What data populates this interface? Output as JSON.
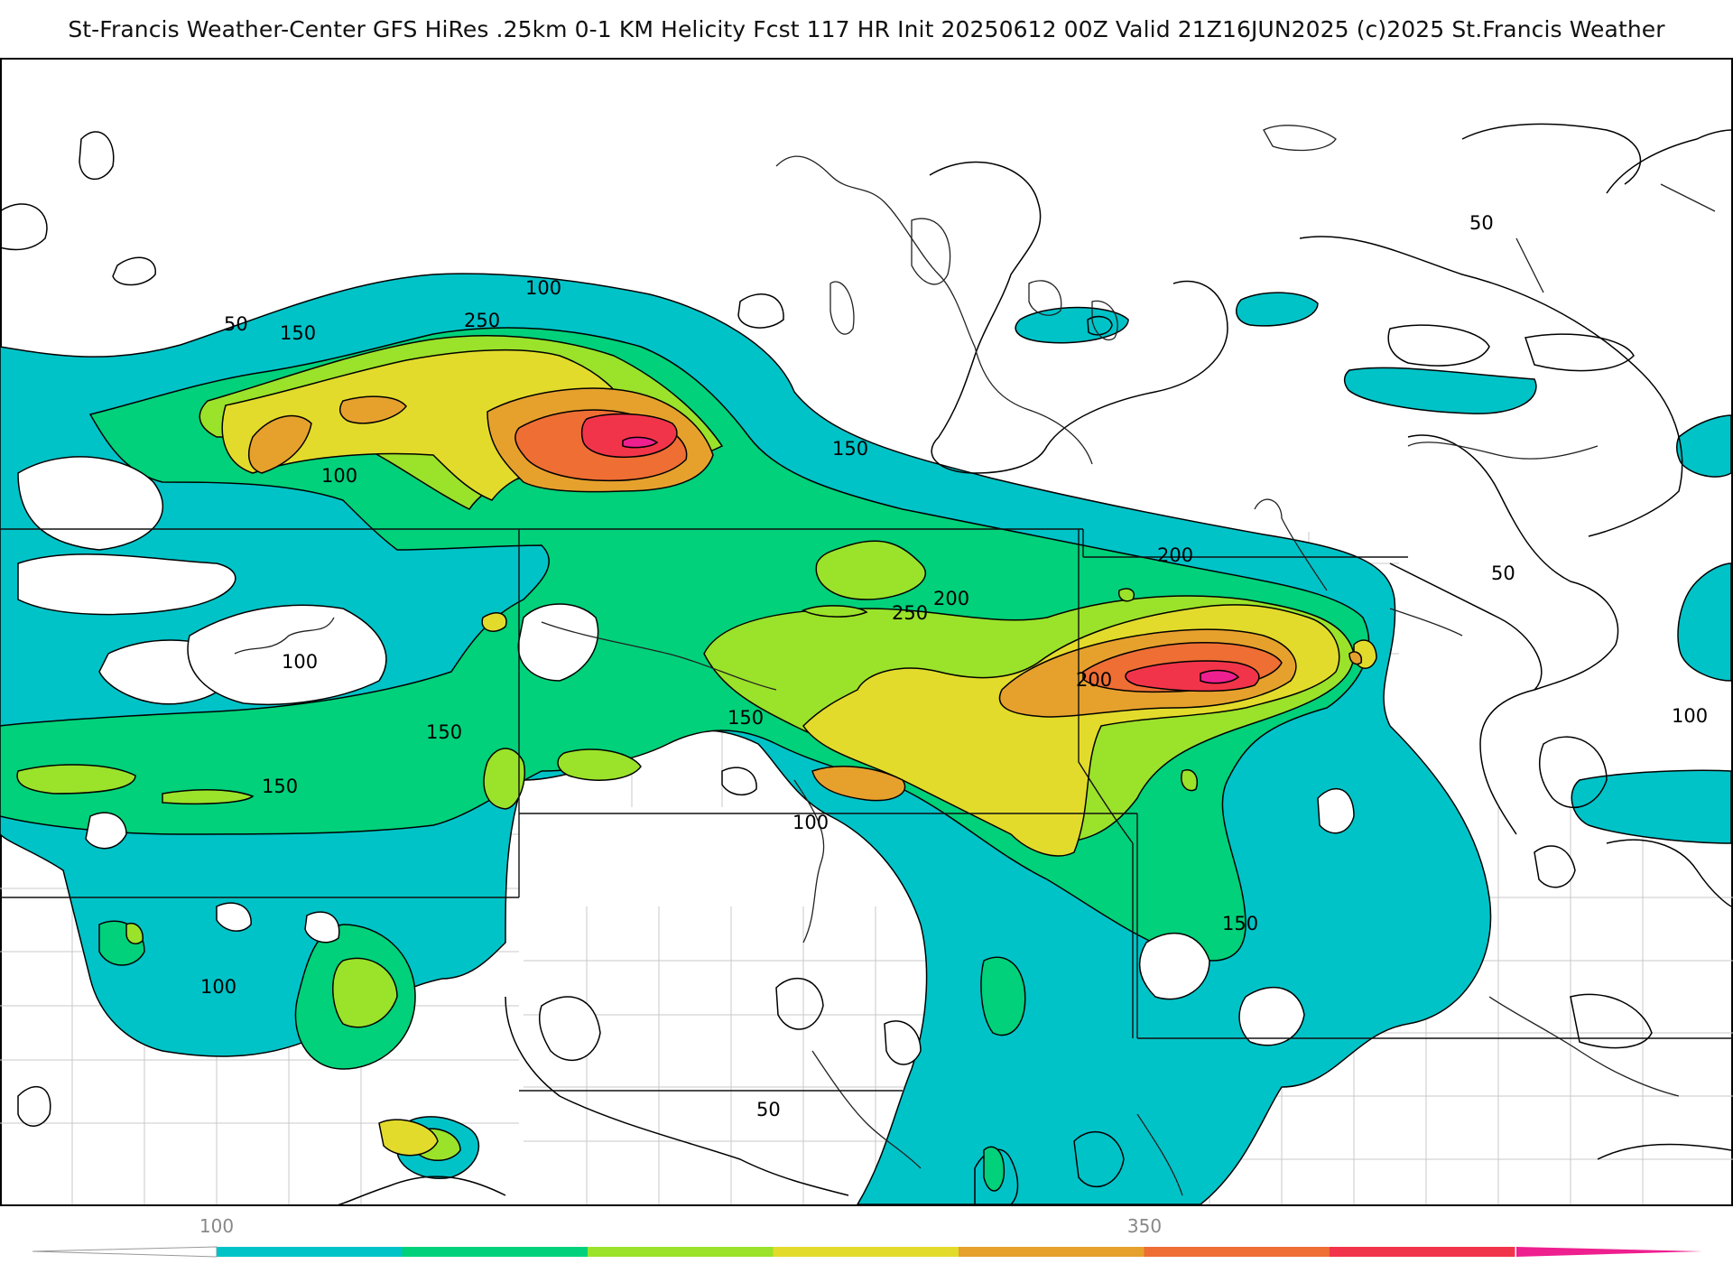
{
  "header": {
    "title": "St-Francis Weather-Center GFS HiRes .25km 0-1 KM Helicity Fcst 117 HR Init 20250612 00Z  Valid 21Z16JUN2025    (c)2025 St.Francis Weather"
  },
  "map": {
    "contour_labels": [
      "100",
      "50",
      "150",
      "250",
      "150",
      "100",
      "200",
      "200",
      "250",
      "200",
      "150",
      "100",
      "150",
      "50",
      "100",
      "150",
      "100",
      "50",
      "50",
      "100"
    ]
  },
  "colorbar": {
    "tick_labels": [
      "100",
      "350"
    ],
    "colors": [
      "#00C3C8",
      "#00D17A",
      "#9BE22A",
      "#E3DB2B",
      "#E6A12D",
      "#EE6E34",
      "#F2344A",
      "#EE1F8F"
    ]
  },
  "colors": {
    "c50": "#00C3C8",
    "c100": "#00D17A",
    "c150": "#9BE22A",
    "c200": "#E3DB2B",
    "c250": "#E6A12D",
    "c300": "#EE6E34",
    "c350": "#F2344A",
    "c400": "#EE1F8F",
    "border": "#000000",
    "county": "#bdbdbd"
  }
}
